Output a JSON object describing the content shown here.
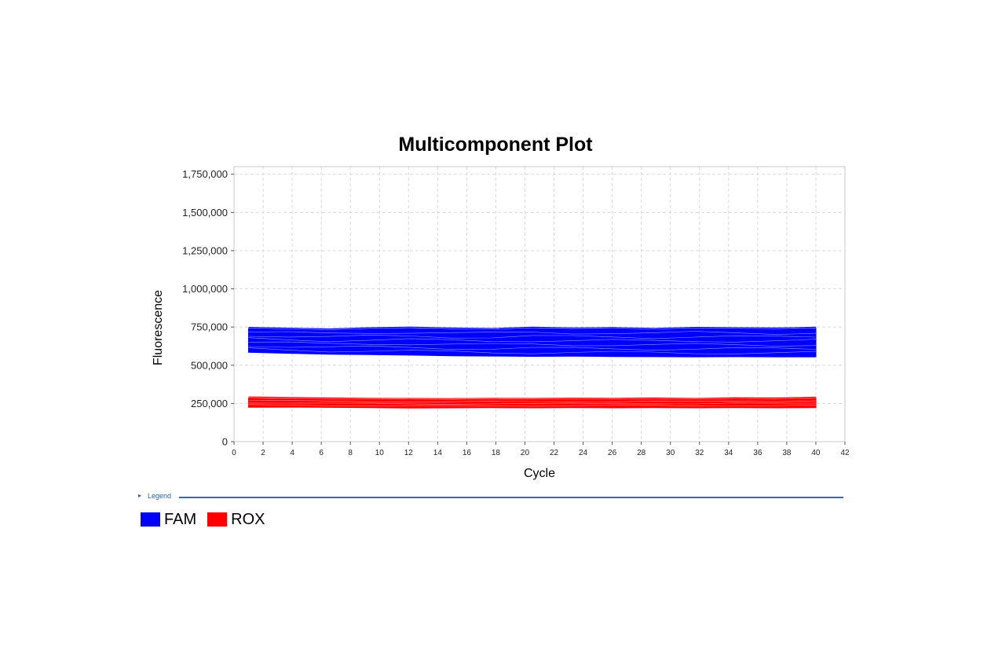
{
  "chart_data": {
    "type": "line",
    "title": "Multicomponent Plot",
    "xlabel": "Cycle",
    "ylabel": "Fluorescence",
    "xlim": [
      0,
      42
    ],
    "ylim": [
      0,
      1800000
    ],
    "x_ticks": [
      0,
      2,
      4,
      6,
      8,
      10,
      12,
      14,
      16,
      18,
      20,
      22,
      24,
      26,
      28,
      30,
      32,
      34,
      36,
      38,
      40,
      42
    ],
    "y_ticks": [
      0,
      250000,
      500000,
      750000,
      1000000,
      1250000,
      1500000,
      1750000
    ],
    "y_tick_labels": [
      "0",
      "250,000",
      "500,000",
      "750,000",
      "1,000,000",
      "1,250,000",
      "1,500,000",
      "1,750,000"
    ],
    "grid": true,
    "x_cycles": [
      1,
      40
    ],
    "series": [
      {
        "name": "FAM",
        "color": "#0000ff",
        "band": {
          "upper": 740000,
          "lower": 560000
        },
        "traces_upper": [
          740000,
          735000,
          730000,
          738000,
          742000,
          736000,
          733000,
          741000,
          737000,
          739000,
          734000,
          740000,
          738000,
          736000,
          741000
        ],
        "traces_lower": [
          585000,
          578000,
          572000,
          570000,
          566000,
          562000,
          560000,
          558000,
          559000,
          557000,
          556000,
          555000,
          556000,
          555000,
          555000
        ]
      },
      {
        "name": "ROX",
        "color": "#ff0000",
        "band": {
          "upper": 285000,
          "lower": 220000
        },
        "traces_upper": [
          285000,
          282000,
          278000,
          276000,
          275000,
          274000,
          276000,
          275000,
          277000,
          276000,
          279000,
          275000,
          280000,
          278000,
          284000
        ],
        "traces_lower": [
          225000,
          226000,
          224000,
          222000,
          220000,
          221000,
          222000,
          221000,
          222000,
          221000,
          222000,
          221000,
          222000,
          221000,
          222000
        ]
      }
    ],
    "legend": {
      "caption": "Legend",
      "placement": "bottom-left",
      "entries": [
        {
          "label": "FAM",
          "color": "#0000ff"
        },
        {
          "label": "ROX",
          "color": "#ff0000"
        }
      ]
    }
  }
}
